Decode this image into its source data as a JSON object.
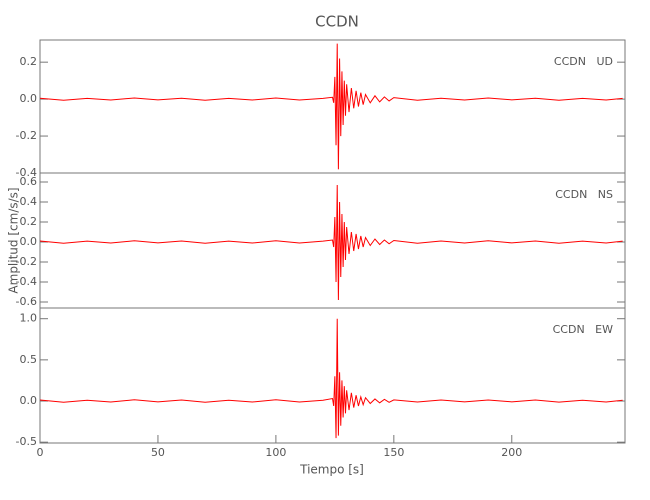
{
  "chart_data": [
    {
      "type": "line",
      "title": "CCDN",
      "label": "CCDN   UD",
      "color": "#ff0000",
      "x": [
        0,
        10,
        20,
        30,
        40,
        50,
        60,
        70,
        80,
        90,
        100,
        110,
        120,
        124,
        124.5,
        125,
        125.5,
        126,
        126.5,
        127,
        127.5,
        128,
        128.5,
        129,
        129.5,
        130,
        131,
        132,
        133,
        134,
        135,
        136,
        137,
        138,
        140,
        142,
        144,
        146,
        148,
        150,
        160,
        170,
        180,
        190,
        200,
        210,
        220,
        230,
        240,
        247
      ],
      "values": [
        0.005,
        -0.006,
        0.004,
        -0.005,
        0.006,
        -0.004,
        0.005,
        -0.006,
        0.004,
        -0.005,
        0.006,
        -0.005,
        0.004,
        0.01,
        -0.02,
        0.12,
        -0.25,
        0.3,
        -0.38,
        0.22,
        -0.2,
        0.15,
        -0.14,
        0.1,
        -0.09,
        0.08,
        -0.07,
        0.06,
        -0.05,
        0.045,
        -0.04,
        0.035,
        -0.03,
        0.025,
        -0.02,
        0.018,
        -0.015,
        0.012,
        -0.01,
        0.008,
        -0.006,
        0.005,
        -0.005,
        0.006,
        -0.004,
        0.005,
        -0.006,
        0.004,
        -0.005,
        0.004
      ],
      "xlim": [
        0,
        248
      ],
      "ylim": [
        -0.4,
        0.32
      ],
      "yticks": [
        -0.4,
        -0.2,
        {
          "value": 0,
          "label": "0.0"
        },
        0.2
      ]
    },
    {
      "type": "line",
      "label": "CCDN   NS",
      "ylabel": "Amplitud [cm/s/s]",
      "color": "#ff0000",
      "x": [
        0,
        10,
        20,
        30,
        40,
        50,
        60,
        70,
        80,
        90,
        100,
        110,
        120,
        124,
        124.5,
        125,
        125.5,
        126,
        126.5,
        127,
        127.5,
        128,
        128.5,
        129,
        129.5,
        130,
        131,
        132,
        133,
        134,
        135,
        136,
        137,
        138,
        140,
        142,
        144,
        146,
        148,
        150,
        160,
        170,
        180,
        190,
        200,
        210,
        220,
        230,
        240,
        247
      ],
      "values": [
        0.01,
        -0.012,
        0.009,
        -0.01,
        0.012,
        -0.009,
        0.01,
        -0.012,
        0.009,
        -0.01,
        0.012,
        -0.01,
        0.009,
        0.02,
        -0.05,
        0.25,
        -0.4,
        0.57,
        -0.58,
        0.4,
        -0.35,
        0.28,
        -0.25,
        0.2,
        -0.18,
        0.15,
        -0.12,
        0.1,
        -0.09,
        0.08,
        -0.07,
        0.06,
        -0.05,
        0.045,
        -0.035,
        0.03,
        -0.025,
        0.02,
        -0.018,
        0.015,
        -0.012,
        0.01,
        -0.01,
        0.012,
        -0.009,
        0.01,
        -0.012,
        0.009,
        -0.01,
        0.009
      ],
      "xlim": [
        0,
        248
      ],
      "ylim": [
        -0.66,
        0.69
      ],
      "yticks": [
        -0.6,
        -0.4,
        -0.2,
        {
          "value": 0,
          "label": "0.0"
        },
        0.2,
        0.4,
        0.6
      ]
    },
    {
      "type": "line",
      "label": "CCDN   EW",
      "xlabel": "Tiempo [s]",
      "color": "#ff0000",
      "x": [
        0,
        10,
        20,
        30,
        40,
        50,
        60,
        70,
        80,
        90,
        100,
        110,
        120,
        124,
        124.5,
        125,
        125.5,
        126,
        126.5,
        127,
        127.5,
        128,
        128.5,
        129,
        129.5,
        130,
        131,
        132,
        133,
        134,
        135,
        136,
        137,
        138,
        140,
        142,
        144,
        146,
        148,
        150,
        160,
        170,
        180,
        190,
        200,
        210,
        220,
        230,
        240,
        247
      ],
      "values": [
        0.012,
        -0.015,
        0.01,
        -0.012,
        0.015,
        -0.01,
        0.012,
        -0.015,
        0.01,
        -0.012,
        0.015,
        -0.012,
        0.01,
        0.03,
        -0.06,
        0.3,
        -0.45,
        1.0,
        -0.42,
        0.35,
        -0.3,
        0.25,
        -0.2,
        0.18,
        -0.15,
        0.13,
        -0.11,
        0.1,
        -0.08,
        0.07,
        -0.06,
        0.05,
        -0.045,
        0.04,
        -0.03,
        0.025,
        -0.022,
        0.02,
        -0.016,
        0.014,
        -0.012,
        0.012,
        -0.01,
        0.012,
        -0.01,
        0.012,
        -0.013,
        0.01,
        -0.012,
        0.01
      ],
      "xlim": [
        0,
        248
      ],
      "ylim": [
        -0.51,
        1.13
      ],
      "yticks": [
        {
          "value": -0.5,
          "label": "-0.5"
        },
        {
          "value": 0,
          "label": "0.0"
        },
        0.5,
        {
          "value": 1,
          "label": "1.0"
        }
      ],
      "xticks": [
        0,
        50,
        100,
        150,
        200
      ]
    }
  ]
}
